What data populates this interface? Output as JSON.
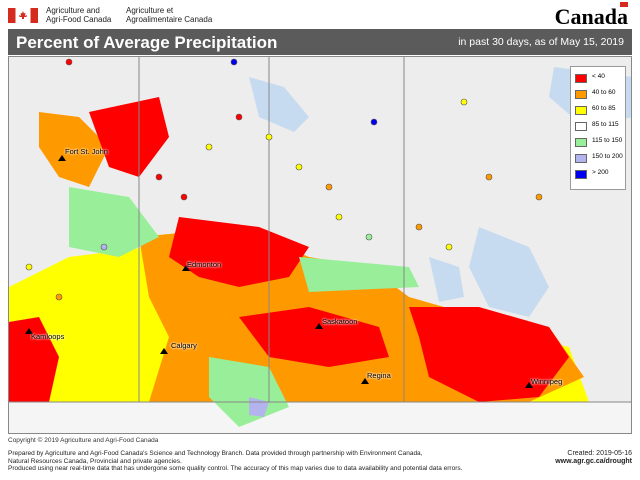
{
  "header": {
    "dept_en_line1": "Agriculture and",
    "dept_en_line2": "Agri-Food Canada",
    "dept_fr_line1": "Agriculture et",
    "dept_fr_line2": "Agroalimentaire Canada",
    "wordmark": "Canada"
  },
  "title": "Percent of Average Precipitation",
  "subtitle": "in past 30 days, as of May 15, 2019",
  "legend": [
    {
      "label": "< 40",
      "color": "#ff0000"
    },
    {
      "label": "40 to 60",
      "color": "#ff9900"
    },
    {
      "label": "60 to 85",
      "color": "#ffff00"
    },
    {
      "label": "85 to 115",
      "color": "#ffffff"
    },
    {
      "label": "115 to 150",
      "color": "#99ee99"
    },
    {
      "label": "150 to 200",
      "color": "#b3b3ee"
    },
    {
      "label": "> 200",
      "color": "#0000ee"
    }
  ],
  "cities": [
    "Fort St. John",
    "Edmonton",
    "Saskatoon",
    "Kamloops",
    "Calgary",
    "Regina",
    "Winnipeg"
  ],
  "footer": {
    "copyright": "Copyright © 2019 Agriculture and Agri-Food Canada",
    "line1": "Prepared by Agriculture and Agri-Food Canada's Science and Technology Branch. Data provided through partnership with Environment Canada,",
    "line2": "Natural Resources Canada, Provincial and private agencies.",
    "line3": "Produced using near real-time data that has undergone some quality control. The accuracy of this map varies due to data availability and potential data errors.",
    "created": "Created: 2019-05-16",
    "url": "www.agr.gc.ca/drought"
  }
}
